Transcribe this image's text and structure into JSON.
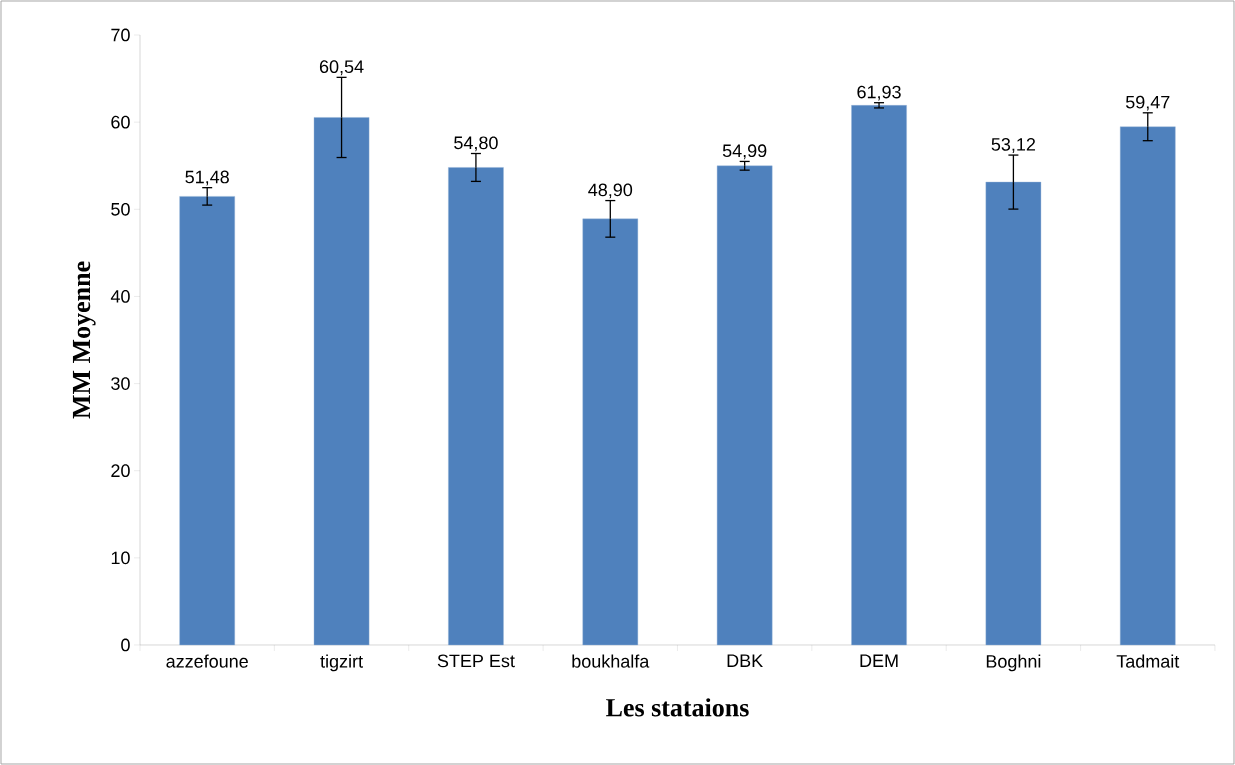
{
  "chart_data": {
    "type": "bar",
    "xlabel": "Les stataions",
    "ylabel": "MM Moyenne",
    "categories": [
      "azzefoune",
      "tigzirt",
      "STEP Est",
      "boukhalfa",
      "DBK",
      "DEM",
      "Boghni",
      "Tadmait"
    ],
    "values": [
      51.48,
      60.54,
      54.8,
      48.9,
      54.99,
      61.93,
      53.12,
      59.47
    ],
    "errors": [
      1.0,
      4.6,
      1.6,
      2.1,
      0.5,
      0.3,
      3.1,
      1.6
    ],
    "value_labels": [
      "51,48",
      "60,54",
      "54,80",
      "48,90",
      "54,99",
      "61,93",
      "53,12",
      "59,47"
    ],
    "color": "#4f81bd",
    "ylim": [
      0,
      70
    ],
    "yticks": [
      0,
      10,
      20,
      30,
      40,
      50,
      60,
      70
    ]
  }
}
